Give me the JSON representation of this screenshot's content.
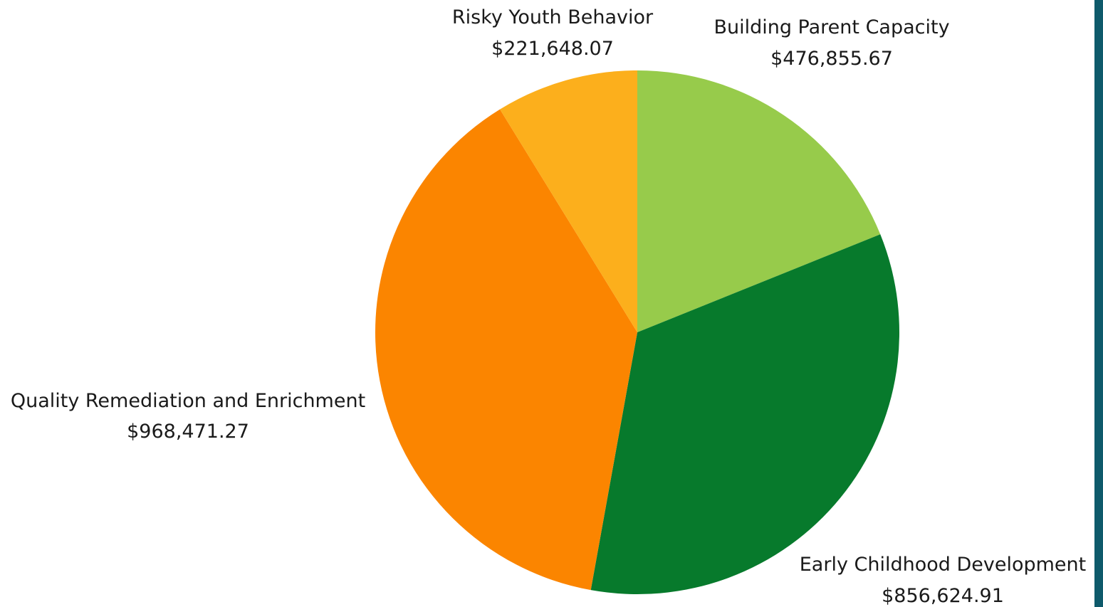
{
  "chart_data": {
    "type": "pie",
    "title": "",
    "slices": [
      {
        "label": "Building Parent Capacity",
        "value": 476855.67,
        "value_label": "$476,855.67",
        "color": "#97cb4b"
      },
      {
        "label": "Early Childhood Development",
        "value": 856624.91,
        "value_label": "$856,624.91",
        "color": "#077a2c"
      },
      {
        "label": "Quality Remediation and Enrichment",
        "value": 968471.27,
        "value_label": "$968,471.27",
        "color": "#fb8500"
      },
      {
        "label": "Risky Youth Behavior",
        "value": 221648.07,
        "value_label": "$221,648.07",
        "color": "#fcaf1c"
      }
    ],
    "start_angle": "12 o'clock",
    "direction": "clockwise",
    "legend": "none",
    "labels": "outside slices"
  },
  "theme": {
    "side_bar_color": "#0e5a6b"
  }
}
